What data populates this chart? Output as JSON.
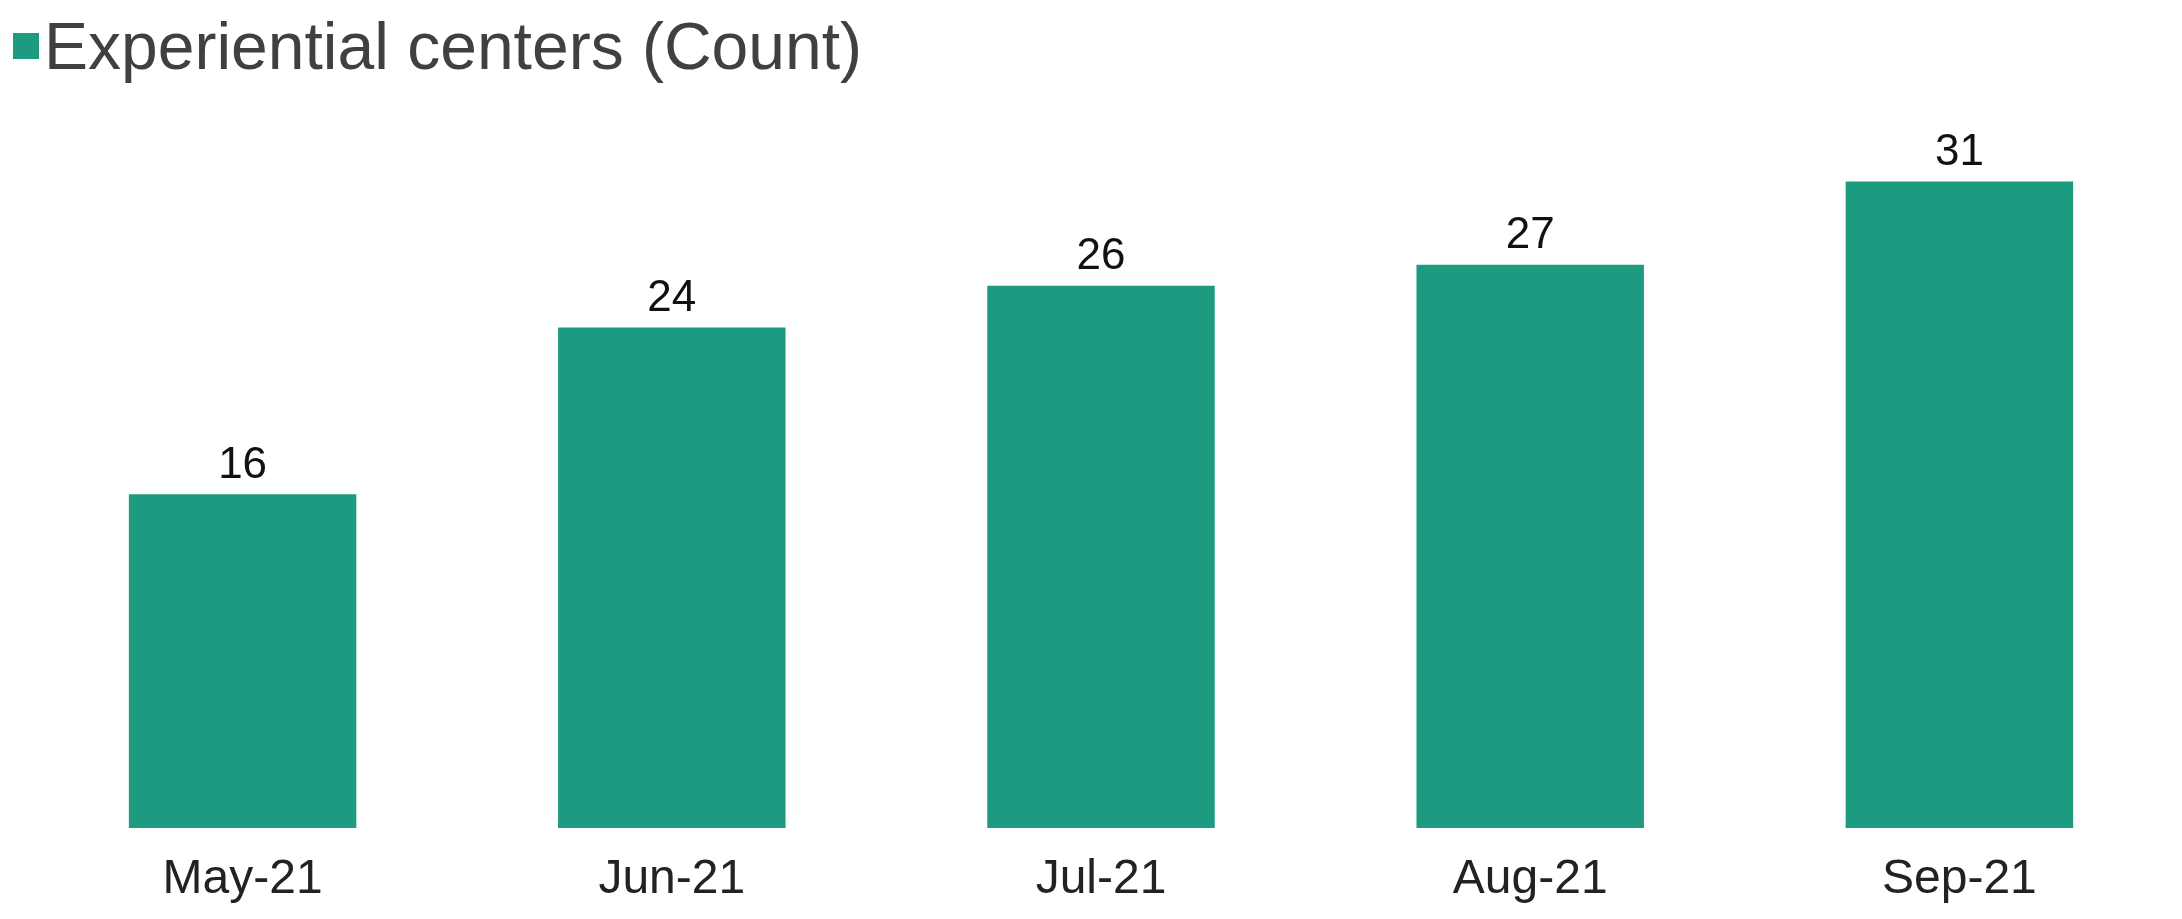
{
  "chart_data": {
    "type": "bar",
    "categories": [
      "May-21",
      "Jun-21",
      "Jul-21",
      "Aug-21",
      "Sep-21"
    ],
    "series": [
      {
        "name": "Experiential centers (Count)",
        "color": "#1c9b80",
        "values": [
          16,
          24,
          26,
          27,
          31
        ]
      }
    ],
    "data_labels": true,
    "legend": "top left"
  }
}
